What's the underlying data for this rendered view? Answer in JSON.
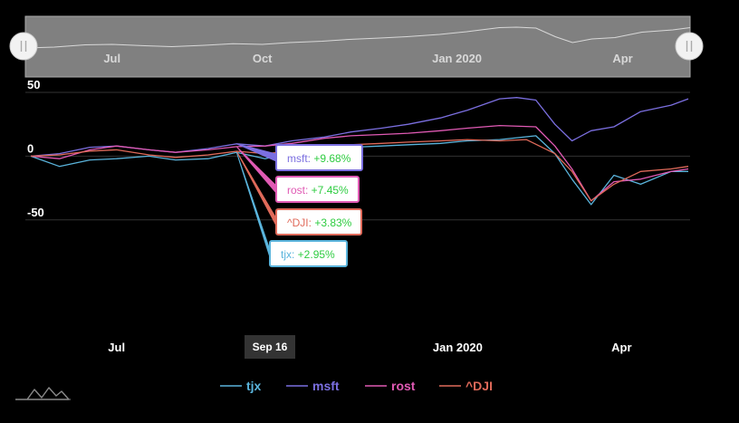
{
  "chart_data": {
    "type": "line",
    "x_tick_labels": [
      "Jul",
      "Oct",
      "Jan 2020",
      "Apr"
    ],
    "y_tick_labels": [
      "50",
      "0",
      "-50"
    ],
    "ylim": [
      -50,
      50
    ],
    "grid": true,
    "legend_position": "bottom",
    "x_range": [
      "2019-05-31",
      "2020-05-10"
    ],
    "series": [
      {
        "name": "tjx",
        "color": "#5ab4dc",
        "points": [
          [
            "2019-05-31",
            0
          ],
          [
            "2019-06-15",
            -8
          ],
          [
            "2019-07-01",
            -3
          ],
          [
            "2019-07-15",
            -2
          ],
          [
            "2019-08-01",
            0
          ],
          [
            "2019-08-15",
            -3
          ],
          [
            "2019-09-01",
            -2
          ],
          [
            "2019-09-16",
            2.95
          ],
          [
            "2019-10-01",
            -2
          ],
          [
            "2019-10-15",
            3
          ],
          [
            "2019-11-01",
            5
          ],
          [
            "2019-11-15",
            7
          ],
          [
            "2019-12-01",
            8
          ],
          [
            "2019-12-15",
            9
          ],
          [
            "2020-01-01",
            10
          ],
          [
            "2020-01-15",
            12
          ],
          [
            "2020-02-01",
            13
          ],
          [
            "2020-02-20",
            16
          ],
          [
            "2020-03-01",
            2
          ],
          [
            "2020-03-10",
            -18
          ],
          [
            "2020-03-20",
            -38
          ],
          [
            "2020-04-01",
            -15
          ],
          [
            "2020-04-15",
            -22
          ],
          [
            "2020-05-01",
            -12
          ],
          [
            "2020-05-10",
            -12
          ]
        ]
      },
      {
        "name": "msft",
        "color": "#7b6fe0",
        "points": [
          [
            "2019-05-31",
            0
          ],
          [
            "2019-06-15",
            2
          ],
          [
            "2019-07-01",
            7
          ],
          [
            "2019-07-15",
            8
          ],
          [
            "2019-08-01",
            5
          ],
          [
            "2019-08-15",
            3
          ],
          [
            "2019-09-01",
            6
          ],
          [
            "2019-09-16",
            9.68
          ],
          [
            "2019-10-01",
            8
          ],
          [
            "2019-10-15",
            12
          ],
          [
            "2019-11-01",
            15
          ],
          [
            "2019-11-15",
            19
          ],
          [
            "2019-12-01",
            22
          ],
          [
            "2019-12-15",
            25
          ],
          [
            "2020-01-01",
            30
          ],
          [
            "2020-01-15",
            36
          ],
          [
            "2020-02-01",
            45
          ],
          [
            "2020-02-10",
            46
          ],
          [
            "2020-02-20",
            44
          ],
          [
            "2020-03-01",
            25
          ],
          [
            "2020-03-10",
            12
          ],
          [
            "2020-03-20",
            20
          ],
          [
            "2020-04-01",
            23
          ],
          [
            "2020-04-15",
            35
          ],
          [
            "2020-05-01",
            40
          ],
          [
            "2020-05-10",
            45
          ]
        ]
      },
      {
        "name": "rost",
        "color": "#e05ab4",
        "points": [
          [
            "2019-05-31",
            0
          ],
          [
            "2019-06-15",
            -2
          ],
          [
            "2019-07-01",
            5
          ],
          [
            "2019-07-15",
            8
          ],
          [
            "2019-08-01",
            5
          ],
          [
            "2019-08-15",
            3
          ],
          [
            "2019-09-01",
            5
          ],
          [
            "2019-09-16",
            7.45
          ],
          [
            "2019-10-01",
            8
          ],
          [
            "2019-10-15",
            10
          ],
          [
            "2019-11-01",
            14
          ],
          [
            "2019-11-15",
            16
          ],
          [
            "2019-12-01",
            17
          ],
          [
            "2019-12-15",
            18
          ],
          [
            "2020-01-01",
            20
          ],
          [
            "2020-01-15",
            22
          ],
          [
            "2020-02-01",
            24
          ],
          [
            "2020-02-20",
            23
          ],
          [
            "2020-03-01",
            8
          ],
          [
            "2020-03-10",
            -10
          ],
          [
            "2020-03-20",
            -35
          ],
          [
            "2020-04-01",
            -20
          ],
          [
            "2020-04-15",
            -18
          ],
          [
            "2020-05-01",
            -12
          ],
          [
            "2020-05-10",
            -10
          ]
        ]
      },
      {
        "name": "^DJI",
        "color": "#e06a5a",
        "points": [
          [
            "2019-05-31",
            0
          ],
          [
            "2019-06-15",
            1
          ],
          [
            "2019-07-01",
            4
          ],
          [
            "2019-07-15",
            5
          ],
          [
            "2019-08-01",
            1
          ],
          [
            "2019-08-15",
            -1
          ],
          [
            "2019-09-01",
            1
          ],
          [
            "2019-09-16",
            3.83
          ],
          [
            "2019-10-01",
            2
          ],
          [
            "2019-10-15",
            4
          ],
          [
            "2019-11-01",
            7
          ],
          [
            "2019-11-15",
            9
          ],
          [
            "2019-12-01",
            10
          ],
          [
            "2019-12-15",
            11
          ],
          [
            "2020-01-01",
            12
          ],
          [
            "2020-01-15",
            13
          ],
          [
            "2020-02-01",
            12
          ],
          [
            "2020-02-15",
            13
          ],
          [
            "2020-03-01",
            2
          ],
          [
            "2020-03-10",
            -12
          ],
          [
            "2020-03-20",
            -35
          ],
          [
            "2020-04-01",
            -22
          ],
          [
            "2020-04-15",
            -12
          ],
          [
            "2020-05-01",
            -10
          ],
          [
            "2020-05-10",
            -8
          ]
        ]
      }
    ],
    "navigator": {
      "x_tick_labels": [
        "Jul",
        "Oct",
        "Jan 2020",
        "Apr"
      ]
    },
    "tooltip": {
      "date_label": "Sep 16",
      "date": "2019-09-16",
      "entries": [
        {
          "series": "msft",
          "name": "msft",
          "value_text": "+9.68%"
        },
        {
          "series": "rost",
          "name": "rost",
          "value_text": "+7.45%"
        },
        {
          "series": "^DJI",
          "name": "^DJI",
          "value_text": "+3.83%"
        },
        {
          "series": "tjx",
          "name": "tjx",
          "value_text": "+2.95%"
        }
      ]
    }
  },
  "colors": {
    "background": "#000000",
    "navigator_fill": "#808080",
    "grid": "#333333",
    "tooltip_bg": "#ffffff",
    "positive_value": "#2ecc40"
  },
  "icons": {
    "navigator_handle": "pause-bars-icon",
    "logo": "mountain-logo-icon"
  }
}
